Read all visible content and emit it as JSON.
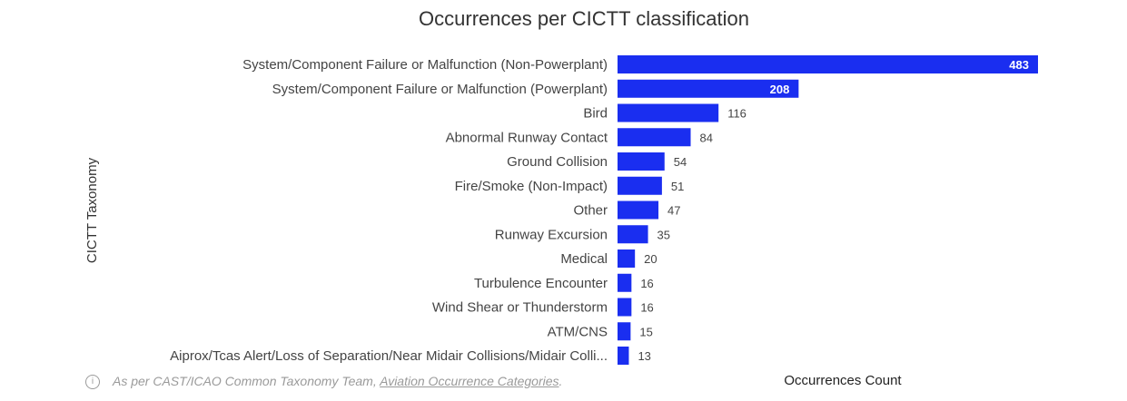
{
  "chart_data": {
    "type": "bar",
    "orientation": "horizontal",
    "title": "Occurrences per CICTT classification",
    "xlabel": "Occurrences Count",
    "ylabel": "CICTT Taxonomy",
    "color": "#1a2ef0",
    "categories": [
      "System/Component Failure or Malfunction (Non-Powerplant)",
      "System/Component Failure or Malfunction (Powerplant)",
      "Bird",
      "Abnormal Runway Contact",
      "Ground Collision",
      "Fire/Smoke (Non-Impact)",
      "Other",
      "Runway Excursion",
      "Medical",
      "Turbulence Encounter",
      "Wind Shear or Thunderstorm",
      "ATM/CNS",
      "Aiprox/Tcas Alert/Loss of Separation/Near Midair Collisions/Midair Colli..."
    ],
    "values": [
      483,
      208,
      116,
      84,
      54,
      51,
      47,
      35,
      20,
      16,
      16,
      15,
      13
    ],
    "xlim": [
      0,
      500
    ],
    "grid": false
  },
  "footnote": {
    "icon": "info-icon",
    "text": "As per CAST/ICAO Common Taxonomy Team, ",
    "link_text": "Aviation Occurrence Categories",
    "suffix": "."
  }
}
